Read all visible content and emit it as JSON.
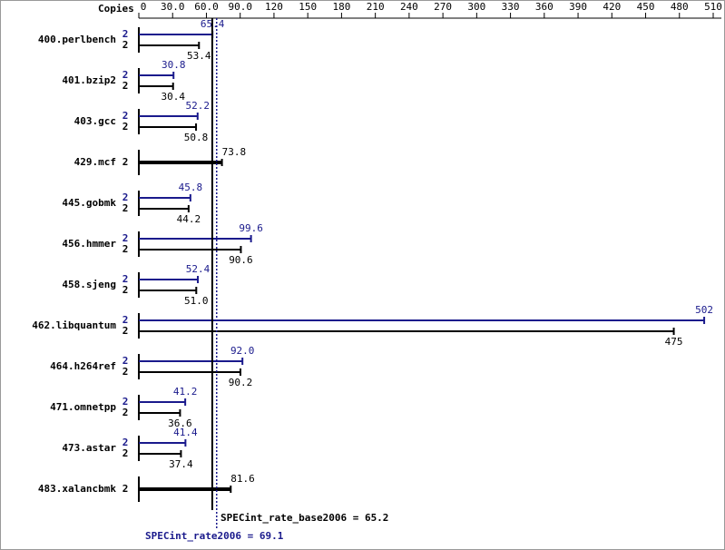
{
  "chart_data": {
    "type": "bar",
    "orientation": "horizontal",
    "copies_header": "Copies",
    "categories": [
      "400.perlbench",
      "401.bzip2",
      "403.gcc",
      "429.mcf",
      "445.gobmk",
      "456.hmmer",
      "458.sjeng",
      "462.libquantum",
      "464.h264ref",
      "471.omnetpp",
      "473.astar",
      "483.xalancbmk"
    ],
    "series": [
      {
        "color": "#1a1a8c",
        "values": [
          65.4,
          30.8,
          52.2,
          null,
          45.8,
          99.6,
          52.4,
          502,
          92.0,
          41.2,
          41.4,
          null
        ],
        "value_labels": [
          "65.4",
          "30.8",
          "52.2",
          null,
          "45.8",
          "99.6",
          "52.4",
          "502",
          "92.0",
          "41.2",
          "41.4",
          null
        ],
        "copies": [
          2,
          2,
          2,
          null,
          2,
          2,
          2,
          2,
          2,
          2,
          2,
          null
        ]
      },
      {
        "color": "#000000",
        "values": [
          53.4,
          30.4,
          50.8,
          73.8,
          44.2,
          90.6,
          51.0,
          475,
          90.2,
          36.6,
          37.4,
          81.6
        ],
        "value_labels": [
          "53.4",
          "30.4",
          "50.8",
          "73.8",
          "44.2",
          "90.6",
          "51.0",
          "475",
          "90.2",
          "36.6",
          "37.4",
          "81.6"
        ],
        "copies": [
          2,
          2,
          2,
          2,
          2,
          2,
          2,
          2,
          2,
          2,
          2,
          2
        ]
      }
    ],
    "xlim": [
      0,
      510
    ],
    "xticks": [
      0,
      {
        "value": 30,
        "label": "30.0"
      },
      {
        "value": 60,
        "label": "60.0"
      },
      {
        "value": 90,
        "label": "90.0"
      },
      120,
      150,
      180,
      210,
      240,
      270,
      300,
      330,
      360,
      390,
      420,
      450,
      480,
      510
    ],
    "reference_lines": [
      {
        "label": "SPECint_rate_base2006 = 65.2",
        "value": 65.2,
        "color": "#000000"
      },
      {
        "label": "SPECint_rate2006 = 69.1",
        "value": 69.1,
        "color": "#1a1a8c"
      }
    ]
  }
}
